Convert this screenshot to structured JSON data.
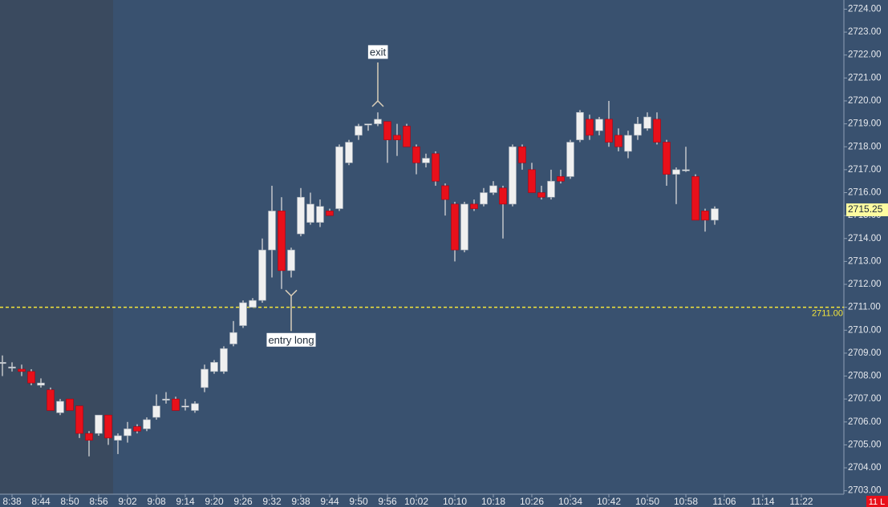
{
  "chart_data": {
    "type": "candlestick",
    "x": [
      "8:36",
      "8:38",
      "8:40",
      "8:42",
      "8:44",
      "8:46",
      "8:48",
      "8:50",
      "8:52",
      "8:54",
      "8:56",
      "8:58",
      "9:00",
      "9:02",
      "9:04",
      "9:06",
      "9:08",
      "9:10",
      "9:12",
      "9:14",
      "9:16",
      "9:18",
      "9:20",
      "9:22",
      "9:24",
      "9:26",
      "9:28",
      "9:30",
      "9:32",
      "9:34",
      "9:36",
      "9:38",
      "9:40",
      "9:42",
      "9:44",
      "9:46",
      "9:48",
      "9:50",
      "9:52",
      "9:54",
      "9:56",
      "9:58",
      "10:00",
      "10:02",
      "10:04",
      "10:06",
      "10:08",
      "10:10",
      "10:12",
      "10:14",
      "10:16",
      "10:18",
      "10:20",
      "10:22",
      "10:24",
      "10:26",
      "10:28",
      "10:30",
      "10:32",
      "10:34",
      "10:36",
      "10:38",
      "10:40",
      "10:42",
      "10:44",
      "10:46",
      "10:48",
      "10:50",
      "10:52",
      "10:54",
      "10:56",
      "10:58",
      "11:00",
      "11:02",
      "11:04"
    ],
    "open": [
      2708.6,
      2708.4,
      2708.3,
      2708.2,
      2707.6,
      2707.4,
      2706.4,
      2707.0,
      2706.7,
      2705.5,
      2705.5,
      2706.3,
      2705.2,
      2705.4,
      2705.8,
      2705.7,
      2706.2,
      2707.0,
      2707.0,
      2706.7,
      2706.5,
      2707.5,
      2708.2,
      2708.2,
      2709.4,
      2710.2,
      2711.0,
      2711.3,
      2713.5,
      2715.2,
      2712.6,
      2714.2,
      2714.7,
      2714.7,
      2715.2,
      2715.3,
      2717.3,
      2718.5,
      2719.0,
      2719.0,
      2719.1,
      2718.5,
      2718.9,
      2718.0,
      2717.3,
      2717.7,
      2716.3,
      2715.5,
      2713.5,
      2715.5,
      2715.5,
      2716.0,
      2716.2,
      2715.5,
      2718.0,
      2717.0,
      2716.0,
      2715.8,
      2716.7,
      2716.7,
      2718.3,
      2719.2,
      2718.7,
      2719.2,
      2718.5,
      2717.8,
      2718.5,
      2718.8,
      2719.2,
      2718.2,
      2716.8,
      2717.0,
      2716.7,
      2715.2,
      2714.8
    ],
    "high": [
      2708.9,
      2708.6,
      2708.5,
      2708.3,
      2707.9,
      2707.5,
      2707.0,
      2707.0,
      2706.7,
      2705.6,
      2706.3,
      2706.3,
      2705.5,
      2706.0,
      2705.9,
      2706.2,
      2707.2,
      2707.3,
      2707.1,
      2707.0,
      2706.9,
      2708.5,
      2708.7,
      2709.3,
      2710.4,
      2711.3,
      2711.4,
      2714.0,
      2716.3,
      2715.8,
      2713.6,
      2716.2,
      2716.0,
      2715.7,
      2715.3,
      2718.1,
      2718.3,
      2719.0,
      2719.0,
      2719.5,
      2719.1,
      2719.0,
      2719.0,
      2718.1,
      2717.7,
      2717.8,
      2716.4,
      2715.6,
      2715.6,
      2715.7,
      2716.2,
      2716.5,
      2716.3,
      2718.1,
      2718.1,
      2717.3,
      2716.3,
      2717.0,
      2717.0,
      2718.3,
      2719.6,
      2719.4,
      2719.3,
      2720.0,
      2718.8,
      2718.7,
      2719.3,
      2719.5,
      2719.5,
      2718.3,
      2717.1,
      2718.0,
      2716.8,
      2715.3,
      2715.4
    ],
    "low": [
      2708.0,
      2708.2,
      2708.0,
      2707.6,
      2707.5,
      2706.5,
      2706.3,
      2706.5,
      2705.3,
      2704.5,
      2705.4,
      2705.0,
      2704.6,
      2705.1,
      2705.5,
      2705.6,
      2706.1,
      2706.8,
      2706.5,
      2706.5,
      2706.4,
      2707.3,
      2708.1,
      2708.1,
      2709.3,
      2710.1,
      2711.0,
      2711.2,
      2712.3,
      2711.8,
      2712.3,
      2714.1,
      2714.6,
      2714.5,
      2715.0,
      2715.2,
      2717.2,
      2718.3,
      2718.7,
      2718.9,
      2717.3,
      2717.6,
      2718.0,
      2716.8,
      2717.1,
      2716.3,
      2715.0,
      2713.0,
      2713.4,
      2715.2,
      2715.4,
      2715.9,
      2714.0,
      2715.4,
      2717.0,
      2716.0,
      2715.7,
      2715.7,
      2716.4,
      2716.6,
      2718.2,
      2718.3,
      2718.5,
      2718.0,
      2717.8,
      2717.5,
      2718.3,
      2718.7,
      2718.1,
      2716.3,
      2715.5,
      2716.9,
      2714.8,
      2714.3,
      2714.6
    ],
    "close": [
      2708.6,
      2708.4,
      2708.2,
      2707.7,
      2707.7,
      2706.5,
      2706.9,
      2706.5,
      2705.5,
      2705.2,
      2706.3,
      2705.3,
      2705.4,
      2705.7,
      2705.6,
      2706.1,
      2706.7,
      2707.0,
      2706.5,
      2706.7,
      2706.8,
      2708.3,
      2708.6,
      2709.2,
      2709.9,
      2711.2,
      2711.3,
      2713.5,
      2715.2,
      2712.6,
      2713.5,
      2715.8,
      2715.5,
      2715.4,
      2715.0,
      2718.0,
      2718.2,
      2718.9,
      2719.0,
      2719.2,
      2718.3,
      2718.3,
      2718.0,
      2717.3,
      2717.5,
      2716.5,
      2715.7,
      2713.5,
      2715.5,
      2715.3,
      2716.0,
      2716.3,
      2715.5,
      2718.0,
      2717.3,
      2716.0,
      2715.8,
      2716.5,
      2716.5,
      2718.2,
      2719.5,
      2718.5,
      2719.2,
      2718.2,
      2718.0,
      2718.5,
      2719.0,
      2719.3,
      2718.2,
      2716.8,
      2717.0,
      2717.0,
      2714.8,
      2714.8,
      2715.3
    ],
    "up_color": "#f0f0f0",
    "down_color": "#e8101a",
    "ylim": [
      2702.85,
      2724.4
    ],
    "yticks": [
      {
        "value": 2703,
        "label": "2703.00"
      },
      {
        "value": 2704,
        "label": "2704.00"
      },
      {
        "value": 2705,
        "label": "2705.00"
      },
      {
        "value": 2706,
        "label": "2706.00"
      },
      {
        "value": 2707,
        "label": "2707.00"
      },
      {
        "value": 2708,
        "label": "2708.00"
      },
      {
        "value": 2709,
        "label": "2709.00"
      },
      {
        "value": 2710,
        "label": "2710.00"
      },
      {
        "value": 2711,
        "label": "2711.00"
      },
      {
        "value": 2712,
        "label": "2712.00"
      },
      {
        "value": 2713,
        "label": "2713.00"
      },
      {
        "value": 2714,
        "label": "2714.00"
      },
      {
        "value": 2715,
        "label": "2715.00"
      },
      {
        "value": 2716,
        "label": "2716.00"
      },
      {
        "value": 2717,
        "label": "2717.00"
      },
      {
        "value": 2718,
        "label": "2718.00"
      },
      {
        "value": 2719,
        "label": "2719.00"
      },
      {
        "value": 2720,
        "label": "2720.00"
      },
      {
        "value": 2721,
        "label": "2721.00"
      },
      {
        "value": 2722,
        "label": "2722.00"
      },
      {
        "value": 2723,
        "label": "2723.00"
      },
      {
        "value": 2724,
        "label": "2724.00"
      }
    ],
    "xticks": [
      "8:38",
      "8:44",
      "8:50",
      "8:56",
      "9:02",
      "9:08",
      "9:14",
      "9:20",
      "9:26",
      "9:32",
      "9:38",
      "9:44",
      "9:50",
      "9:56",
      "10:02",
      "10:10",
      "10:18",
      "10:26",
      "10:34",
      "10:42",
      "10:50",
      "10:58",
      "11:06",
      "11:14",
      "11:22"
    ],
    "last_price": 2715.25,
    "hline": {
      "value": 2711,
      "label": "2711.00",
      "color": "#f5e63a"
    },
    "annotations": [
      {
        "text": "exit",
        "x": "9:54",
        "y": 2720.0
      },
      {
        "text": "entry long",
        "x": "9:36",
        "y": 2711.5
      }
    ],
    "position": "11 L"
  }
}
